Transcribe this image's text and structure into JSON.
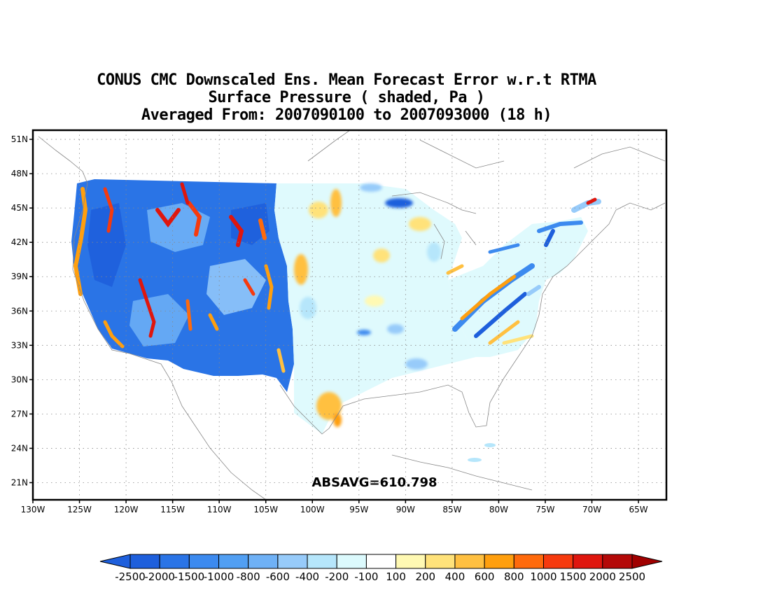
{
  "title": {
    "line1": "CONUS CMC Downscaled Ens. Mean Forecast Error w.r.t RTMA",
    "line2": "Surface Pressure ( shaded, Pa )",
    "line3": "Averaged From: 2007090100 to 2007093000 (18 h)"
  },
  "map": {
    "projection": "lat-lon",
    "lon_range": [
      -130,
      -62
    ],
    "lat_range": [
      19.5,
      51.8
    ],
    "lat_ticks": [
      "51N",
      "48N",
      "45N",
      "42N",
      "39N",
      "36N",
      "33N",
      "30N",
      "27N",
      "24N",
      "21N"
    ],
    "lon_ticks": [
      "130W",
      "125W",
      "120W",
      "115W",
      "110W",
      "105W",
      "100W",
      "95W",
      "90W",
      "85W",
      "80W",
      "75W",
      "70W",
      "65W"
    ],
    "grid": "dotted",
    "annotation": "ABSAVG=610.798"
  },
  "colorbar": {
    "labels": [
      "-2500",
      "-2000",
      "-1500",
      "-1000",
      "-800",
      "-600",
      "-400",
      "-200",
      "-100",
      "100",
      "200",
      "400",
      "600",
      "800",
      "1000",
      "1500",
      "2000",
      "2500"
    ],
    "colors": [
      "#1e5fdc",
      "#2a74e6",
      "#3c8aef",
      "#519ff3",
      "#6fb1f6",
      "#97cbfa",
      "#b6e6fb",
      "#dcfafd",
      "#ffffff",
      "#fff9b3",
      "#ffe27a",
      "#ffc041",
      "#ff9f0e",
      "#ff6a0c",
      "#f63a0e",
      "#df160e",
      "#b40908"
    ],
    "under_color": "#1e5fdc",
    "over_color": "#a00000"
  }
}
